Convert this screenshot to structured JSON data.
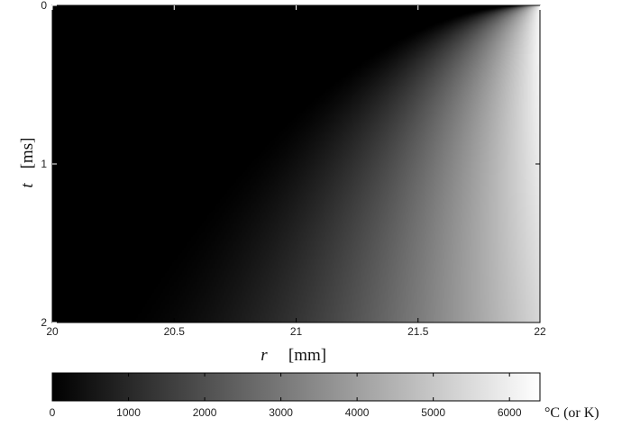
{
  "chart_data": {
    "type": "heatmap",
    "title": "",
    "x": {
      "label_var": "r",
      "label_unit": "[mm]",
      "lim": [
        20,
        22
      ],
      "ticks": [
        20,
        20.5,
        21,
        21.5,
        22
      ],
      "tick_labels": [
        "20",
        "20.5",
        "21",
        "21.5",
        "22"
      ]
    },
    "y": {
      "label_var": "t",
      "label_unit": "[ms]",
      "lim": [
        0,
        2
      ],
      "reversed": true,
      "ticks": [
        0,
        1,
        2
      ],
      "tick_labels": [
        "0",
        "1",
        "2"
      ]
    },
    "colorbar": {
      "colormap": "gray",
      "lim": [
        0,
        6400
      ],
      "ticks": [
        0,
        1000,
        2000,
        3000,
        4000,
        5000,
        6000
      ],
      "tick_labels": [
        "0",
        "1000",
        "2000",
        "3000",
        "4000",
        "5000",
        "6000"
      ],
      "unit_label": "°C (or K)",
      "orientation": "horizontal",
      "placement": "bottom"
    },
    "field_samples": [
      {
        "r": 22.0,
        "t": 0.02,
        "value": 6300
      },
      {
        "r": 22.0,
        "t": 0.3,
        "value": 6200
      },
      {
        "r": 22.0,
        "t": 1.0,
        "value": 5500
      },
      {
        "r": 22.0,
        "t": 2.0,
        "value": 4300
      },
      {
        "r": 21.5,
        "t": 1.0,
        "value": 3300
      },
      {
        "r": 21.5,
        "t": 2.0,
        "value": 3400
      },
      {
        "r": 21.0,
        "t": 1.0,
        "value": 900
      },
      {
        "r": 21.0,
        "t": 2.0,
        "value": 1500
      },
      {
        "r": 20.5,
        "t": 2.0,
        "value": 300
      },
      {
        "r": 20.0,
        "t": 1.0,
        "value": 0
      }
    ]
  }
}
